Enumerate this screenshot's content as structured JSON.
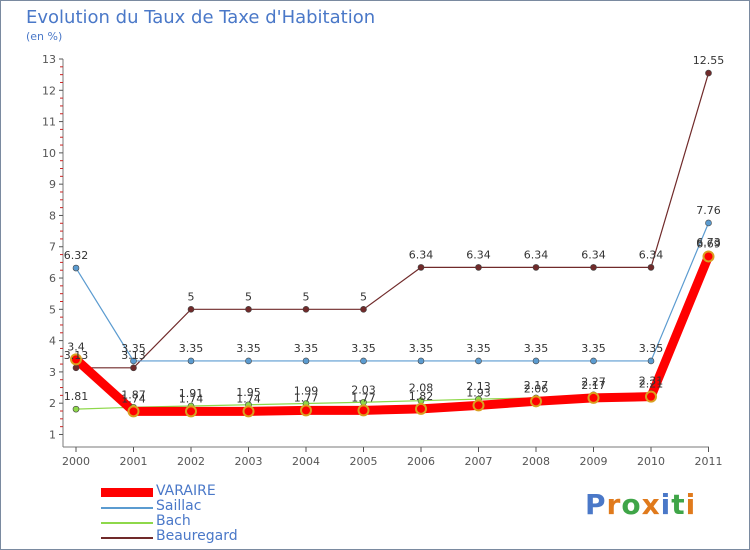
{
  "chart_data": {
    "type": "line",
    "title": "Evolution du Taux de Taxe d'Habitation",
    "subtitle": "(en %)",
    "categories": [
      "2000",
      "2001",
      "2002",
      "2003",
      "2004",
      "2005",
      "2006",
      "2007",
      "2008",
      "2009",
      "2010",
      "2011"
    ],
    "ylim": [
      0.6,
      13
    ],
    "yticks": [
      1,
      2,
      3,
      4,
      5,
      6,
      7,
      8,
      9,
      10,
      11,
      12,
      13
    ],
    "series": [
      {
        "name": "Beauregard",
        "color": "#702a2a",
        "width": 1,
        "values": [
          3.13,
          3.13,
          5,
          5,
          5,
          5,
          6.34,
          6.34,
          6.34,
          6.34,
          6.34,
          12.55
        ],
        "labels": [
          "3.13",
          "3.13",
          "5",
          "5",
          "5",
          "5",
          "6.34",
          "6.34",
          "6.34",
          "6.34",
          "6.34",
          "12.55"
        ]
      },
      {
        "name": "Saillac",
        "color": "#5b9bd0",
        "width": 1,
        "values": [
          6.32,
          3.35,
          3.35,
          3.35,
          3.35,
          3.35,
          3.35,
          3.35,
          3.35,
          3.35,
          3.35,
          7.76
        ],
        "labels": [
          "6.32",
          "3.35",
          "3.35",
          "3.35",
          "3.35",
          "3.35",
          "3.35",
          "3.35",
          "3.35",
          "3.35",
          "3.35",
          "7.76"
        ]
      },
      {
        "name": "Bach",
        "color": "#8ed84a",
        "width": 1,
        "values": [
          1.81,
          1.87,
          1.91,
          1.95,
          1.99,
          2.03,
          2.08,
          2.13,
          2.17,
          2.27,
          2.31,
          6.73
        ],
        "labels": [
          "1.81",
          "1.87",
          "1.91",
          "1.95",
          "1.99",
          "2.03",
          "2.08",
          "2.13",
          "2.17",
          "2.27",
          "2.31",
          "6.73"
        ]
      },
      {
        "name": "VARAIRE",
        "color": "#ff0000",
        "width": 9,
        "values": [
          3.4,
          1.74,
          1.74,
          1.74,
          1.77,
          1.77,
          1.82,
          1.93,
          2.06,
          2.17,
          2.21,
          6.69
        ],
        "labels": [
          "3.4",
          "1.74",
          "1.74",
          "1.74",
          "1.77",
          "1.77",
          "1.82",
          "1.93",
          "2.06",
          "2.17",
          "2.21",
          "6.69"
        ]
      }
    ],
    "legend": [
      "VARAIRE",
      "Saillac",
      "Bach",
      "Beauregard"
    ],
    "legend_position": "bottom-left",
    "grid": false
  },
  "legend_items": [
    {
      "name": "VARAIRE",
      "color": "#ff0000"
    },
    {
      "name": "Saillac",
      "color": "#5b9bd0"
    },
    {
      "name": "Bach",
      "color": "#8ed84a"
    },
    {
      "name": "Beauregard",
      "color": "#702a2a"
    }
  ],
  "logo": {
    "letters": [
      "P",
      "r",
      "o",
      "x",
      "i",
      "t",
      "i"
    ],
    "colors": [
      "#4a78c8",
      "#e07a1c",
      "#3fa548",
      "#e07a1c",
      "#4a78c8",
      "#3fa548",
      "#e07a1c"
    ]
  }
}
